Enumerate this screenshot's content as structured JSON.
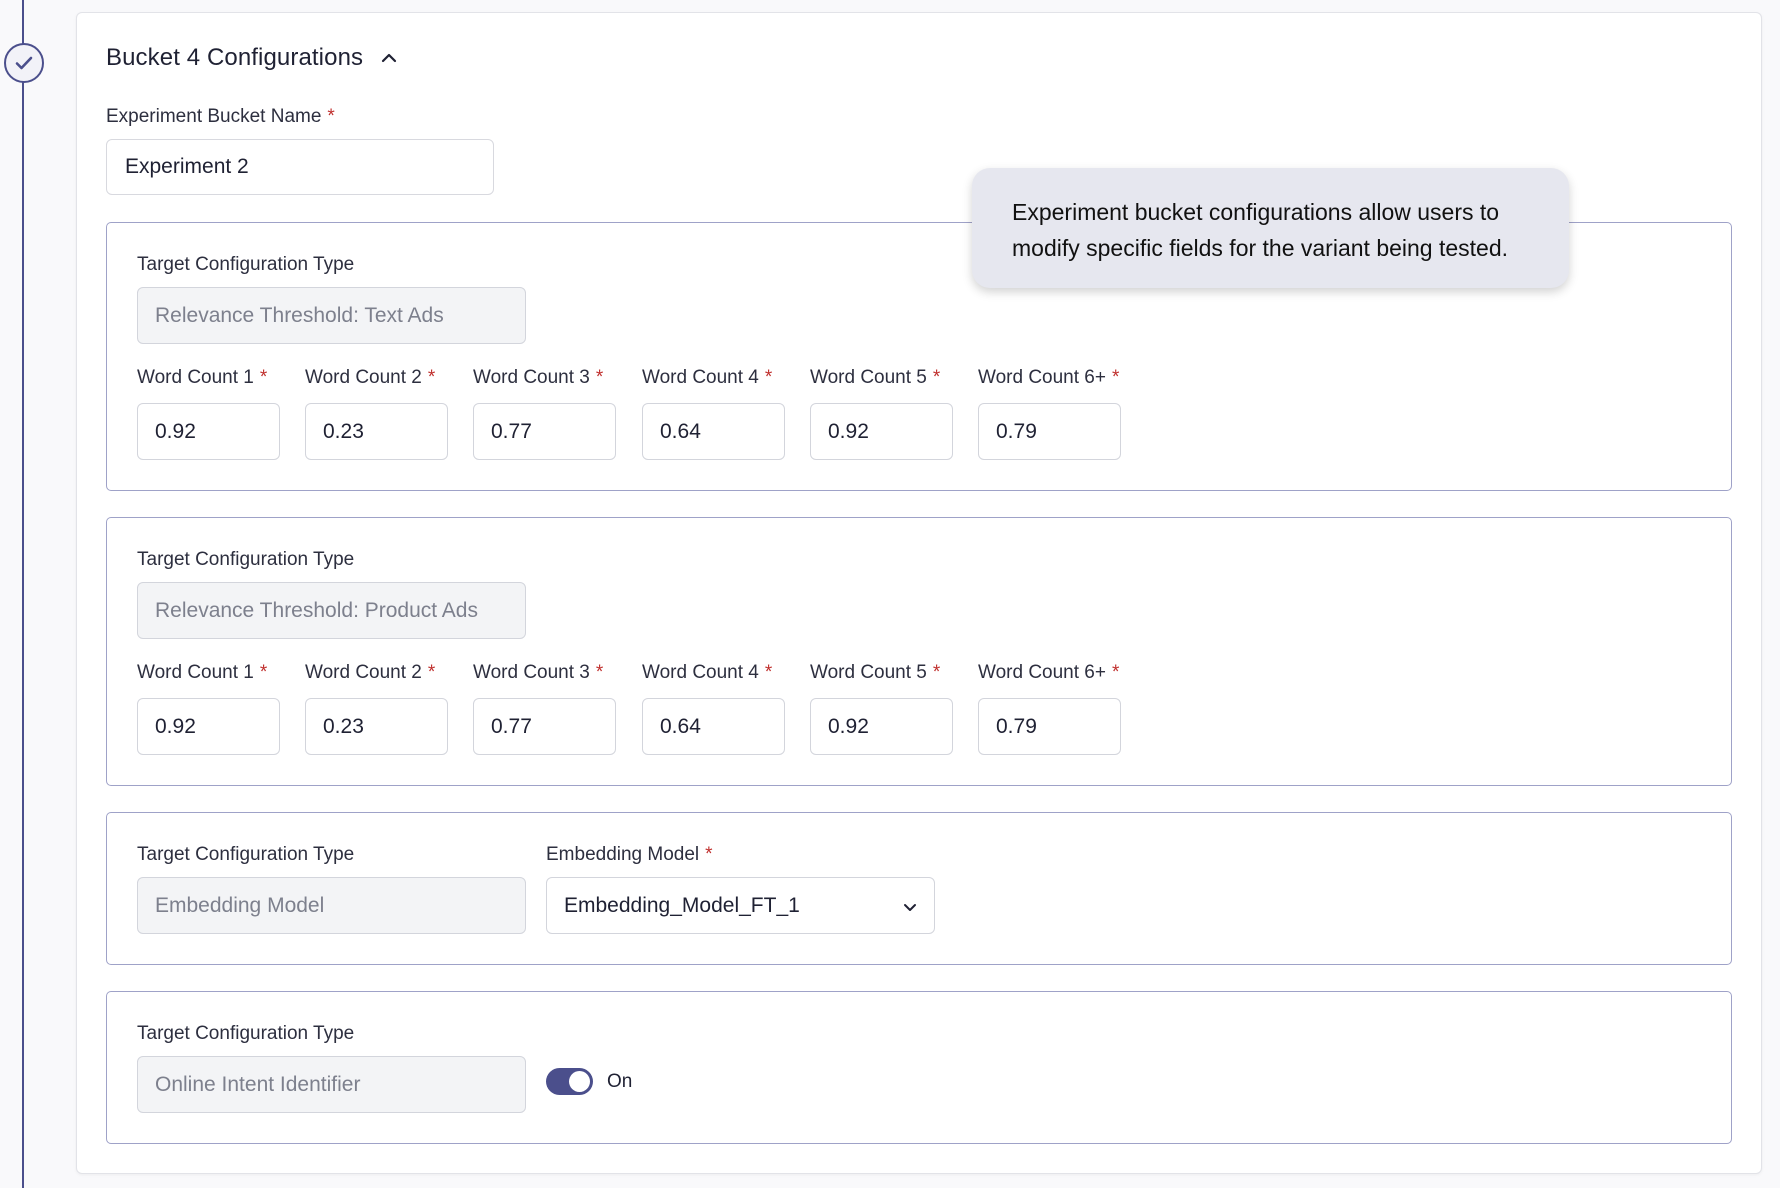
{
  "header": {
    "title": "Bucket 4 Configurations",
    "collapse_icon": "chevron-up-icon"
  },
  "bucket_name": {
    "label": "Experiment Bucket Name",
    "required": "*",
    "value": "Experiment 2"
  },
  "tooltip": {
    "text": "Experiment bucket configurations allow users to modify specific fields for the variant being tested."
  },
  "sections": [
    {
      "type_label": "Target Configuration Type",
      "type_value": "Relevance Threshold: Text Ads",
      "word_counts": [
        {
          "label": "Word Count 1",
          "value": "0.92"
        },
        {
          "label": "Word Count 2",
          "value": "0.23"
        },
        {
          "label": "Word Count 3",
          "value": "0.77"
        },
        {
          "label": "Word Count 4",
          "value": "0.64"
        },
        {
          "label": "Word Count 5",
          "value": "0.92"
        },
        {
          "label": "Word Count 6+",
          "value": "0.79"
        }
      ]
    },
    {
      "type_label": "Target Configuration Type",
      "type_value": "Relevance Threshold: Product Ads",
      "word_counts": [
        {
          "label": "Word Count 1",
          "value": "0.92"
        },
        {
          "label": "Word Count 2",
          "value": "0.23"
        },
        {
          "label": "Word Count 3",
          "value": "0.77"
        },
        {
          "label": "Word Count 4",
          "value": "0.64"
        },
        {
          "label": "Word Count 5",
          "value": "0.92"
        },
        {
          "label": "Word Count 6+",
          "value": "0.79"
        }
      ]
    },
    {
      "type_label": "Target Configuration Type",
      "type_value": "Embedding Model",
      "field_label": "Embedding Model",
      "field_value": "Embedding_Model_FT_1"
    },
    {
      "type_label": "Target Configuration Type",
      "type_value": "Online Intent Identifier",
      "toggle_state": "On"
    }
  ],
  "required_marker": "*",
  "colors": {
    "accent": "#4b4f8c",
    "required": "#c0302e",
    "section_border": "#9fa2c8"
  }
}
